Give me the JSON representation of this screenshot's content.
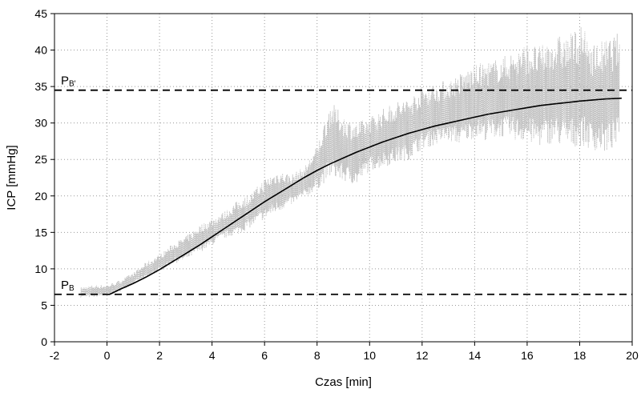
{
  "chart_data": {
    "type": "line",
    "title": "",
    "xlabel": "Czas [min]",
    "ylabel": "ICP [mmHg]",
    "xlim": [
      -2,
      20
    ],
    "ylim": [
      0,
      45
    ],
    "xticks": [
      -2,
      0,
      2,
      4,
      6,
      8,
      10,
      12,
      14,
      16,
      18,
      20
    ],
    "yticks": [
      0,
      5,
      10,
      15,
      20,
      25,
      30,
      35,
      40,
      45
    ],
    "grid": "dotted",
    "colors": {
      "raw": "#bdbdbd",
      "fit": "#000000",
      "reference": "#000000"
    },
    "series": [
      {
        "kind": "raw-band",
        "x": [
          -1,
          -0.5,
          0,
          0.5,
          1,
          1.5,
          2,
          2.5,
          3,
          3.5,
          4,
          4.5,
          5,
          5.5,
          6,
          6.5,
          7,
          7.5,
          8,
          8.5,
          9,
          9.5,
          10,
          10.5,
          11,
          11.5,
          12,
          12.5,
          13,
          13.5,
          14,
          14.5,
          15,
          15.5,
          16,
          16.5,
          17,
          17.5,
          18,
          18.5,
          19,
          19.5
        ],
        "low": [
          6.0,
          6.0,
          6.2,
          6.8,
          7.8,
          8.5,
          9.5,
          10.5,
          11.0,
          12.0,
          13.0,
          14.0,
          14.5,
          15.5,
          16.5,
          17.5,
          18.5,
          19.5,
          20.5,
          22.0,
          21.5,
          21.0,
          23.0,
          23.5,
          24.0,
          24.5,
          26.0,
          26.5,
          27.0,
          26.5,
          27.5,
          27.0,
          27.5,
          27.0,
          26.5,
          26.0,
          26.5,
          25.5,
          26.0,
          25.5,
          25.0,
          26.0
        ],
        "high": [
          7.5,
          7.8,
          7.8,
          8.5,
          9.5,
          11.0,
          12.0,
          13.5,
          14.5,
          16.0,
          17.0,
          18.0,
          19.5,
          20.5,
          22.5,
          23.5,
          23.0,
          24.0,
          27.0,
          33.0,
          31.0,
          30.0,
          31.0,
          32.0,
          33.0,
          33.5,
          35.0,
          35.5,
          36.0,
          37.0,
          38.0,
          38.5,
          39.0,
          40.0,
          41.0,
          40.5,
          42.0,
          42.0,
          43.5,
          41.0,
          41.5,
          42.5
        ]
      },
      {
        "kind": "fit-curve",
        "x": [
          0.1,
          0.5,
          1,
          1.5,
          2,
          2.5,
          3,
          3.5,
          4,
          4.5,
          5,
          5.5,
          6,
          6.5,
          7,
          7.5,
          8,
          8.5,
          9,
          9.5,
          10,
          10.5,
          11,
          11.5,
          12,
          12.5,
          13,
          13.5,
          14,
          14.5,
          15,
          15.5,
          16,
          16.5,
          17,
          17.5,
          18,
          18.5,
          19,
          19.6
        ],
        "y": [
          6.5,
          7.2,
          8.0,
          8.9,
          9.9,
          11.0,
          12.1,
          13.2,
          14.4,
          15.6,
          16.8,
          18.0,
          19.2,
          20.3,
          21.4,
          22.5,
          23.5,
          24.4,
          25.2,
          26.0,
          26.7,
          27.4,
          28.0,
          28.6,
          29.1,
          29.6,
          30.0,
          30.4,
          30.8,
          31.2,
          31.5,
          31.8,
          32.1,
          32.4,
          32.6,
          32.8,
          33.0,
          33.15,
          33.3,
          33.4
        ]
      }
    ],
    "reference_lines": [
      {
        "y": 34.5,
        "label_main": "P",
        "label_sub": "B'"
      },
      {
        "y": 6.5,
        "label_main": "P",
        "label_sub": "B"
      }
    ]
  }
}
